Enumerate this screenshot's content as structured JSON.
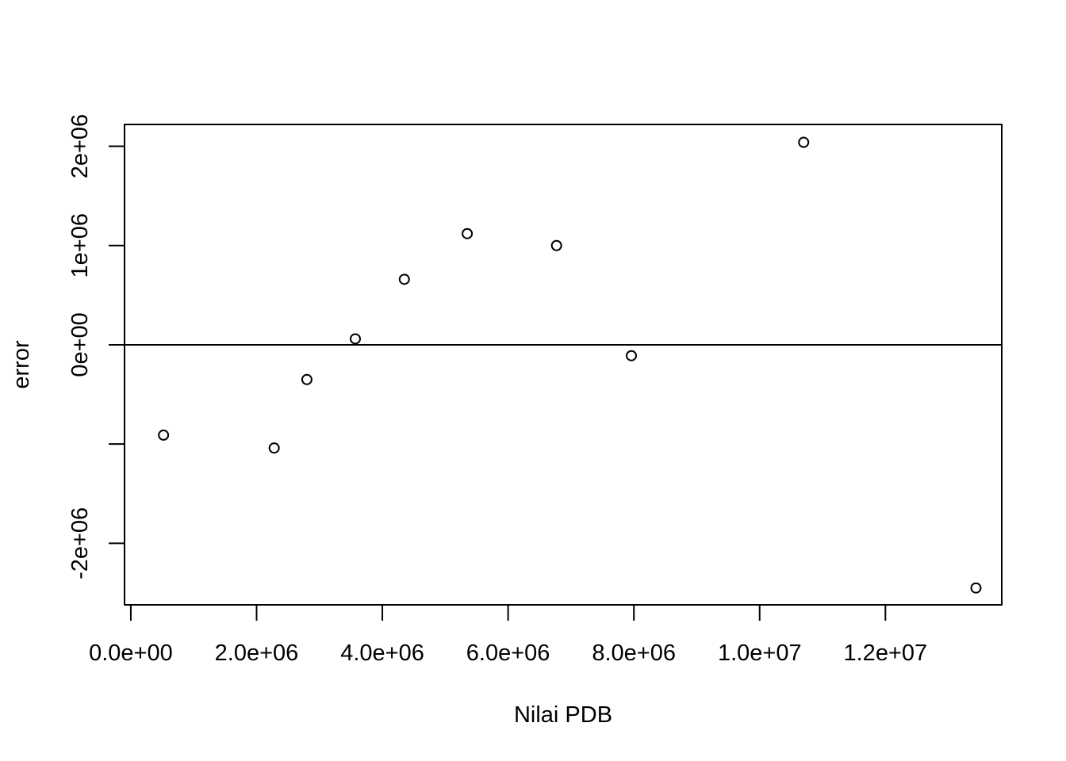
{
  "chart_data": {
    "type": "scatter",
    "title": "",
    "xlabel": "Nilai PDB",
    "ylabel": "error",
    "xlim": [
      -100000,
      13850000
    ],
    "ylim": [
      -2620000,
      2220000
    ],
    "x_ticks": [
      0,
      2000000,
      4000000,
      6000000,
      8000000,
      10000000,
      12000000
    ],
    "x_tick_labels": [
      "0.0e+00",
      "2.0e+06",
      "4.0e+06",
      "6.0e+06",
      "8.0e+06",
      "1.0e+07",
      "1.2e+07"
    ],
    "y_ticks": [
      -2000000,
      -1000000,
      0,
      1000000,
      2000000
    ],
    "y_tick_labels": [
      "-2e+06",
      "",
      "0e+00",
      "1e+06",
      "2e+06"
    ],
    "reference_line_y": 0,
    "grid": false,
    "legend": "none",
    "points": [
      {
        "x": 520000,
        "y": -910000
      },
      {
        "x": 2280000,
        "y": -1040000
      },
      {
        "x": 2800000,
        "y": -350000
      },
      {
        "x": 3570000,
        "y": 60000
      },
      {
        "x": 4350000,
        "y": 660000
      },
      {
        "x": 5350000,
        "y": 1120000
      },
      {
        "x": 6770000,
        "y": 1000000
      },
      {
        "x": 7960000,
        "y": -110000
      },
      {
        "x": 10700000,
        "y": 2040000
      },
      {
        "x": 13440000,
        "y": -2450000
      }
    ],
    "colors": {
      "marker": "#000000",
      "axis": "#000000"
    }
  }
}
